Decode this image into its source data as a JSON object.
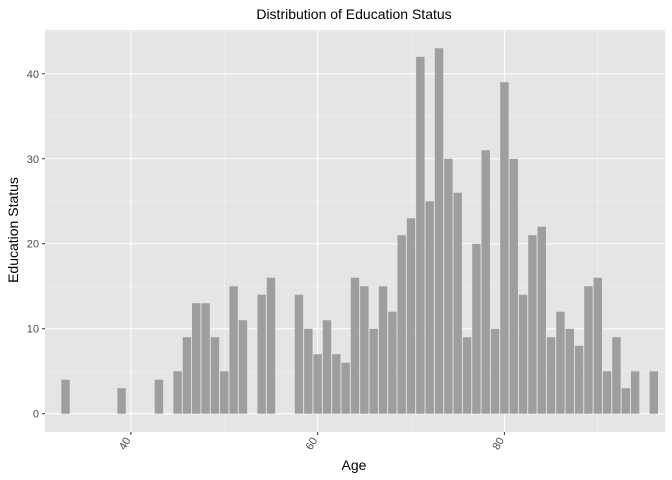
{
  "chart_data": {
    "type": "bar",
    "title": "Distribution of Education Status",
    "xlabel": "Age",
    "ylabel": "Education Status",
    "xlim": [
      30.8,
      97.2
    ],
    "ylim": [
      -2.15,
      45.15
    ],
    "x_ticks": [
      40,
      60,
      80
    ],
    "y_ticks": [
      0,
      10,
      20,
      30,
      40
    ],
    "grid": true,
    "legend": "none",
    "bar_color": "#9e9e9e",
    "panel_background": "#e5e5e5",
    "x": [
      33,
      39,
      43,
      45,
      46,
      47,
      48,
      49,
      50,
      51,
      52,
      54,
      55,
      58,
      59,
      60,
      61,
      62,
      63,
      64,
      65,
      66,
      67,
      68,
      69,
      70,
      71,
      72,
      73,
      74,
      75,
      76,
      77,
      78,
      79,
      80,
      81,
      82,
      83,
      84,
      85,
      86,
      87,
      88,
      89,
      90,
      91,
      92,
      93,
      94,
      96
    ],
    "values": [
      4,
      3,
      4,
      5,
      9,
      13,
      13,
      9,
      5,
      15,
      11,
      14,
      16,
      14,
      10,
      7,
      11,
      7,
      6,
      16,
      15,
      10,
      15,
      12,
      21,
      23,
      42,
      25,
      43,
      30,
      26,
      9,
      20,
      31,
      10,
      39,
      30,
      14,
      21,
      22,
      9,
      12,
      10,
      8,
      15,
      16,
      5,
      9,
      3,
      5,
      5
    ]
  }
}
